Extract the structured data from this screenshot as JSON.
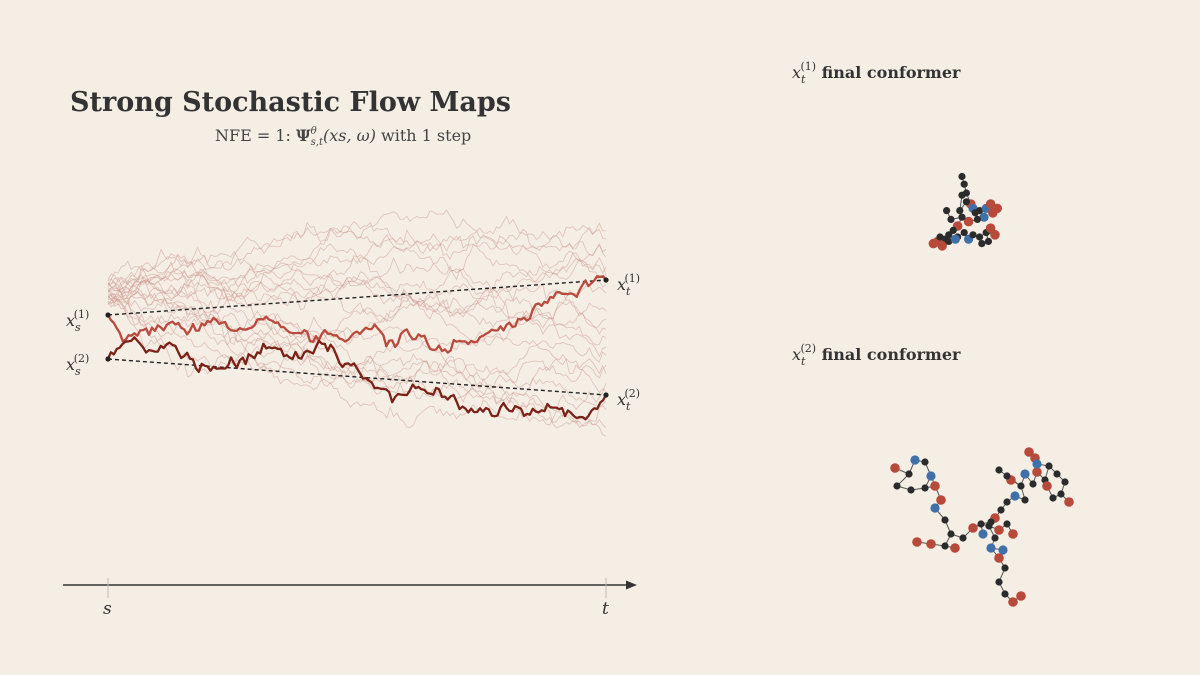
{
  "title": "Strong Stochastic Flow Maps",
  "subtitle": {
    "prefix": "NFE = 1: ",
    "psi_symbol": "Ψ",
    "psi_sup": "θ",
    "psi_sub": "s,t",
    "args": "(xs, ω)",
    "suffix": " with 1 step"
  },
  "labels": {
    "xs1": {
      "base": "x",
      "sub": "s",
      "sup": "(1)"
    },
    "xs2": {
      "base": "x",
      "sub": "s",
      "sup": "(2)"
    },
    "xt1": {
      "base": "x",
      "sub": "t",
      "sup": "(1)"
    },
    "xt2": {
      "base": "x",
      "sub": "t",
      "sup": "(2)"
    },
    "axis_s": "s",
    "axis_t": "t"
  },
  "conformers": {
    "c1_title": {
      "base": "x",
      "sub": "t",
      "sup": "(1)",
      "text": " final conformer"
    },
    "c2_title": {
      "base": "x",
      "sub": "t",
      "sup": "(2)",
      "text": " final conformer"
    }
  },
  "colors": {
    "background": "#f4eee5",
    "path1": "#b94a3e",
    "path2": "#7a2218",
    "ghost": "#c9928a",
    "atom_carbon": "#2b2b2b",
    "atom_oxygen": "#b84a3c",
    "atom_nitrogen": "#3f70a8",
    "bond": "#555555",
    "axis": "#333333"
  },
  "paths": {
    "ghost_count": 22,
    "path1_seed": 7,
    "path2_seed": 13
  }
}
